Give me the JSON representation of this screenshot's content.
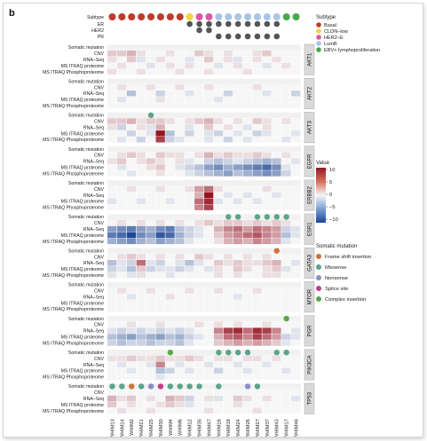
{
  "figure": {
    "panel_label": "b",
    "annotation_labels": [
      "Subtype",
      "ER",
      "HER2",
      "PR"
    ],
    "row_labels": [
      "Somatic mutation",
      "CNV",
      "RNA–Seq",
      "MS ITRAQ proteome",
      "MS ITRAQ Phosphoproteome"
    ],
    "genes": [
      "AKT1",
      "AKT2",
      "AKT3",
      "EGFR",
      "ERBB2",
      "ESR1",
      "GATA3",
      "MTOR",
      "PGR",
      "PIK3CA",
      "TP53"
    ],
    "samples": [
      "WHIM13",
      "WHIM14",
      "WHIM2",
      "WHIM21",
      "WHIM25",
      "WHIM30",
      "WHIM4",
      "WHIM6",
      "WHIM12",
      "WHIM35",
      "WHIM47",
      "WHIM16",
      "WHIM18",
      "WHIM24",
      "WHIM26",
      "WHIM27",
      "WHIM37",
      "WHIM43",
      "WHIM17",
      "WHIM46"
    ],
    "subtype_of_sample": [
      "Basal",
      "Basal",
      "Basal",
      "Basal",
      "Basal",
      "Basal",
      "Basal",
      "Basal",
      "CLDN–low",
      "HER2–E",
      "HER2–E",
      "LumB",
      "LumB",
      "LumB",
      "LumB",
      "LumB",
      "LumB",
      "LumB",
      "EBV+ lymphoproliferation",
      "EBV+ lymphoproliferation"
    ],
    "er_positive": [
      8,
      9,
      10,
      11,
      12,
      13,
      14,
      15,
      16,
      17
    ],
    "her2_positive": [
      9,
      10
    ],
    "pr_positive": [
      11,
      12,
      13,
      14,
      15,
      16,
      17
    ]
  },
  "legend": {
    "subtype_title": "Subtype",
    "subtypes": [
      {
        "label": "Basal",
        "color": "#c0392b"
      },
      {
        "label": "CLDN–low",
        "color": "#f0d43a"
      },
      {
        "label": "HER2–E",
        "color": "#e052a8"
      },
      {
        "label": "LumB",
        "color": "#a8c4e6"
      },
      {
        "label": "EBV+ lymphoproliferation",
        "color": "#4aa84a"
      }
    ],
    "value_title": "Value",
    "value_ticks": [
      "10",
      "5",
      "0",
      "−5",
      "−10"
    ],
    "mutation_title": "Somatic mutation",
    "mutations": [
      {
        "label": "Frame shift insertion",
        "color": "#d3713a"
      },
      {
        "label": "Missense",
        "color": "#5aa587"
      },
      {
        "label": "Nonsense",
        "color": "#8b8ec9"
      },
      {
        "label": "Splice site",
        "color": "#c33d8c"
      },
      {
        "label": "Complex insertion",
        "color": "#58a846"
      }
    ]
  },
  "mutations": {
    "AKT3": [
      [
        4,
        "Missense"
      ]
    ],
    "ESR1": [
      [
        12,
        "Missense"
      ],
      [
        13,
        "Missense"
      ],
      [
        15,
        "Missense"
      ],
      [
        16,
        "Missense"
      ],
      [
        17,
        "Missense"
      ],
      [
        18,
        "Missense"
      ]
    ],
    "GATA3": [
      [
        17,
        "Frame shift insertion"
      ]
    ],
    "PGR": [
      [
        18,
        "Complex insertion"
      ]
    ],
    "PIK3CA": [
      [
        6,
        "Complex insertion"
      ],
      [
        11,
        "Missense"
      ],
      [
        12,
        "Missense"
      ],
      [
        13,
        "Missense"
      ],
      [
        14,
        "Missense"
      ],
      [
        17,
        "Missense"
      ],
      [
        18,
        "Missense"
      ]
    ],
    "TP53": [
      [
        0,
        "Missense"
      ],
      [
        1,
        "Missense"
      ],
      [
        2,
        "Frame shift insertion"
      ],
      [
        3,
        "Missense"
      ],
      [
        4,
        "Nonsense"
      ],
      [
        5,
        "Splice site"
      ],
      [
        6,
        "Missense"
      ],
      [
        7,
        "Missense"
      ],
      [
        8,
        "Missense"
      ],
      [
        9,
        "Missense"
      ],
      [
        11,
        "Missense"
      ],
      [
        14,
        "Nonsense"
      ],
      [
        15,
        "Missense"
      ]
    ]
  },
  "heatmap": {
    "AKT1": [
      [],
      [
        2,
        2,
        3,
        1,
        0,
        0,
        1,
        0,
        0,
        2,
        1,
        0,
        1,
        0,
        0,
        1,
        2,
        0,
        0,
        0
      ],
      [
        1,
        0,
        2,
        -1,
        0,
        1,
        0,
        0,
        -1,
        0,
        2,
        0,
        1,
        -1,
        0,
        1,
        0,
        1,
        0,
        0
      ],
      [
        0,
        1,
        0,
        0,
        -1,
        0,
        1,
        0,
        1,
        0,
        0,
        -1,
        0,
        1,
        0,
        0,
        -1,
        0,
        1,
        0
      ],
      [
        1,
        0,
        0,
        1,
        0,
        0,
        0,
        1,
        0,
        0,
        1,
        0,
        0,
        0,
        1,
        0,
        0,
        0,
        0,
        0
      ]
    ],
    "AKT2": [
      [],
      [
        0,
        1,
        0,
        0,
        1,
        0,
        0,
        1,
        0,
        0,
        1,
        0,
        0,
        0,
        0,
        1,
        0,
        0,
        0,
        0
      ],
      [
        0,
        0,
        -3,
        0,
        0,
        -2,
        0,
        0,
        -1,
        0,
        0,
        0,
        -2,
        0,
        0,
        0,
        -1,
        0,
        0,
        -2
      ],
      [
        0,
        -1,
        0,
        0,
        0,
        1,
        0,
        0,
        0,
        0,
        0,
        -1,
        0,
        0,
        0,
        0,
        0,
        0,
        0,
        0
      ],
      [
        0,
        0,
        0,
        0,
        0,
        0,
        0,
        0,
        0,
        0,
        0,
        0,
        0,
        0,
        0,
        0,
        0,
        0,
        0,
        0
      ]
    ],
    "AKT3": [
      [],
      [
        2,
        2,
        3,
        1,
        2,
        2,
        1,
        0,
        1,
        2,
        3,
        1,
        0,
        1,
        0,
        2,
        1,
        0,
        1,
        0
      ],
      [
        1,
        -2,
        0,
        1,
        -1,
        3,
        0,
        0,
        -1,
        0,
        2,
        0,
        1,
        0,
        -1,
        0,
        1,
        0,
        0,
        0
      ],
      [
        0,
        0,
        -2,
        0,
        -1,
        10,
        -3,
        0,
        -2,
        0,
        -1,
        -2,
        0,
        -1,
        0,
        -2,
        -1,
        0,
        0,
        -1
      ],
      [
        0,
        -1,
        0,
        -2,
        0,
        8,
        -2,
        -1,
        0,
        0,
        -1,
        0,
        -2,
        0,
        -1,
        0,
        0,
        0,
        -1,
        0
      ]
    ],
    "EGFR": [
      [],
      [
        0,
        1,
        2,
        1,
        0,
        2,
        1,
        1,
        0,
        1,
        3,
        1,
        2,
        1,
        1,
        2,
        1,
        0,
        1,
        0
      ],
      [
        1,
        2,
        0,
        1,
        2,
        1,
        0,
        1,
        -1,
        0,
        -2,
        -3,
        -2,
        -1,
        -2,
        -3,
        -4,
        -3,
        0,
        -1
      ],
      [
        0,
        -1,
        0,
        0,
        1,
        2,
        0,
        -1,
        -2,
        -3,
        -5,
        -6,
        -4,
        -5,
        -6,
        -7,
        -8,
        -6,
        -1,
        0
      ],
      [
        0,
        0,
        -1,
        0,
        0,
        1,
        0,
        0,
        -1,
        -2,
        -3,
        -4,
        -5,
        -3,
        -4,
        -5,
        -6,
        -5,
        -2,
        0
      ]
    ],
    "ERBB2": [
      [],
      [
        0,
        0,
        1,
        0,
        0,
        1,
        0,
        0,
        1,
        4,
        6,
        1,
        0,
        0,
        0,
        0,
        1,
        0,
        0,
        0
      ],
      [
        0,
        0,
        0,
        0,
        0,
        0,
        0,
        0,
        0,
        3,
        10,
        0,
        -1,
        0,
        -1,
        0,
        0,
        -1,
        0,
        0
      ],
      [
        -1,
        0,
        0,
        -1,
        0,
        0,
        -1,
        0,
        0,
        6,
        9,
        -1,
        0,
        -1,
        0,
        -1,
        0,
        0,
        0,
        0
      ],
      [
        0,
        0,
        0,
        0,
        0,
        0,
        0,
        0,
        0,
        5,
        8,
        0,
        0,
        0,
        0,
        0,
        0,
        0,
        0,
        0
      ]
    ],
    "ESR1": [
      [],
      [
        0,
        1,
        0,
        1,
        0,
        1,
        0,
        1,
        0,
        1,
        2,
        1,
        2,
        2,
        1,
        2,
        1,
        2,
        1,
        0
      ],
      [
        -5,
        -6,
        -7,
        -5,
        -4,
        -6,
        -7,
        -3,
        -2,
        -1,
        0,
        3,
        5,
        6,
        4,
        6,
        5,
        4,
        -2,
        -1
      ],
      [
        -7,
        -8,
        -10,
        -6,
        -5,
        -9,
        -8,
        -4,
        -2,
        -1,
        0,
        2,
        4,
        5,
        6,
        7,
        5,
        4,
        -3,
        -1
      ],
      [
        -4,
        -5,
        -6,
        -4,
        -3,
        -5,
        -4,
        -3,
        -1,
        0,
        0,
        1,
        3,
        4,
        3,
        5,
        4,
        3,
        -1,
        0
      ]
    ],
    "GATA3": [
      [],
      [
        0,
        1,
        2,
        1,
        0,
        1,
        0,
        1,
        0,
        2,
        1,
        0,
        1,
        0,
        1,
        0,
        1,
        0,
        0,
        0
      ],
      [
        -3,
        -1,
        -2,
        6,
        -1,
        -2,
        0,
        -1,
        -3,
        -1,
        0,
        2,
        1,
        2,
        1,
        1,
        2,
        3,
        0,
        -1
      ],
      [
        -2,
        -1,
        -3,
        2,
        -2,
        -1,
        -1,
        -2,
        -1,
        0,
        -1,
        1,
        0,
        2,
        1,
        0,
        1,
        2,
        -1,
        0
      ],
      [
        -1,
        0,
        -1,
        1,
        0,
        0,
        -1,
        0,
        0,
        0,
        0,
        1,
        0,
        1,
        0,
        0,
        1,
        1,
        0,
        0
      ]
    ],
    "MTOR": [
      [],
      [
        0,
        1,
        0,
        0,
        1,
        0,
        0,
        0,
        1,
        0,
        0,
        1,
        0,
        0,
        0,
        1,
        0,
        0,
        0,
        0
      ],
      [
        0,
        0,
        -1,
        0,
        0,
        0,
        1,
        0,
        0,
        0,
        0,
        0,
        0,
        -1,
        0,
        0,
        0,
        0,
        0,
        0
      ],
      [
        0,
        0,
        0,
        0,
        0,
        0,
        0,
        0,
        0,
        0,
        0,
        0,
        0,
        0,
        0,
        0,
        0,
        0,
        0,
        0
      ],
      [
        0,
        0,
        0,
        0,
        0,
        0,
        0,
        0,
        0,
        0,
        0,
        0,
        0,
        0,
        0,
        0,
        0,
        0,
        0,
        0
      ]
    ],
    "PGR": [
      [],
      [
        0,
        0,
        1,
        0,
        0,
        1,
        0,
        0,
        0,
        1,
        0,
        1,
        0,
        1,
        0,
        0,
        1,
        0,
        0,
        0
      ],
      [
        -1,
        -2,
        -1,
        -2,
        -1,
        -2,
        -1,
        -2,
        -1,
        0,
        0,
        5,
        8,
        9,
        6,
        9,
        8,
        5,
        0,
        -1
      ],
      [
        -3,
        -4,
        -5,
        -3,
        -4,
        -5,
        -3,
        -4,
        -2,
        -1,
        0,
        3,
        6,
        7,
        5,
        8,
        6,
        4,
        -2,
        -1
      ],
      [
        -2,
        -3,
        -2,
        -2,
        -3,
        -2,
        -2,
        -3,
        -1,
        0,
        0,
        2,
        3,
        4,
        3,
        4,
        3,
        2,
        -1,
        0
      ]
    ],
    "PIK3CA": [
      [],
      [
        1,
        1,
        2,
        1,
        1,
        2,
        1,
        1,
        2,
        1,
        0,
        1,
        1,
        0,
        1,
        1,
        0,
        1,
        0,
        0
      ],
      [
        0,
        -1,
        0,
        0,
        -1,
        5,
        0,
        -1,
        0,
        0,
        -1,
        0,
        0,
        -1,
        0,
        0,
        -1,
        0,
        0,
        0
      ],
      [
        0,
        0,
        -1,
        0,
        0,
        -3,
        -2,
        0,
        -1,
        0,
        0,
        -2,
        0,
        0,
        -1,
        0,
        0,
        0,
        -1,
        0
      ],
      [
        0,
        0,
        0,
        0,
        0,
        -1,
        0,
        0,
        0,
        0,
        0,
        0,
        0,
        0,
        0,
        0,
        0,
        0,
        0,
        0
      ]
    ],
    "TP53": [
      [],
      [
        0,
        0,
        0,
        0,
        0,
        0,
        0,
        0,
        0,
        0,
        0,
        0,
        0,
        0,
        0,
        0,
        0,
        0,
        0,
        0
      ],
      [
        3,
        1,
        2,
        0,
        1,
        0,
        3,
        2,
        -2,
        0,
        1,
        -1,
        0,
        2,
        1,
        0,
        1,
        0,
        0,
        -1
      ],
      [
        2,
        0,
        1,
        0,
        0,
        1,
        2,
        1,
        -1,
        0,
        0,
        0,
        0,
        1,
        0,
        0,
        0,
        0,
        0,
        0
      ],
      [
        0,
        1,
        0,
        0,
        1,
        0,
        0,
        0,
        0,
        0,
        1,
        0,
        0,
        0,
        0,
        1,
        0,
        0,
        0,
        0
      ]
    ]
  }
}
